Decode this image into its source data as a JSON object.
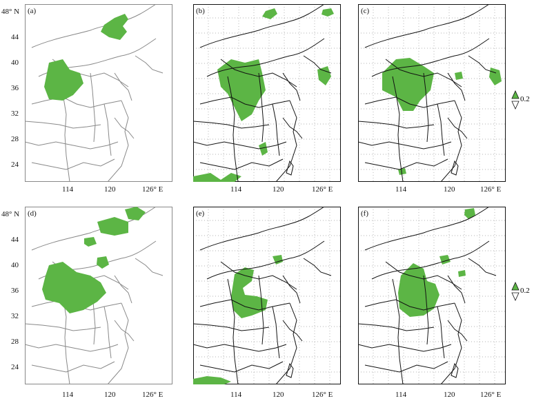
{
  "panels": [
    {
      "id": "a",
      "label": "(a)",
      "border_color": "#888888",
      "show_lat": true,
      "show_grid": false
    },
    {
      "id": "b",
      "label": "(b)",
      "border_color": "#111111",
      "show_lat": false,
      "show_grid": true
    },
    {
      "id": "c",
      "label": "(c)",
      "border_color": "#111111",
      "show_lat": false,
      "show_grid": true
    },
    {
      "id": "d",
      "label": "(d)",
      "border_color": "#888888",
      "show_lat": true,
      "show_grid": false
    },
    {
      "id": "e",
      "label": "(e)",
      "border_color": "#111111",
      "show_lat": false,
      "show_grid": true
    },
    {
      "id": "f",
      "label": "(f)",
      "border_color": "#111111",
      "show_lat": false,
      "show_grid": true
    }
  ],
  "lat_ticks": [
    "48° N",
    "44",
    "40",
    "36",
    "32",
    "28",
    "24"
  ],
  "lon_ticks": [
    "114",
    "120",
    "126° E"
  ],
  "legend": {
    "value": "0.2",
    "color": "#5cb545"
  },
  "fill_color": "#5cb545"
}
